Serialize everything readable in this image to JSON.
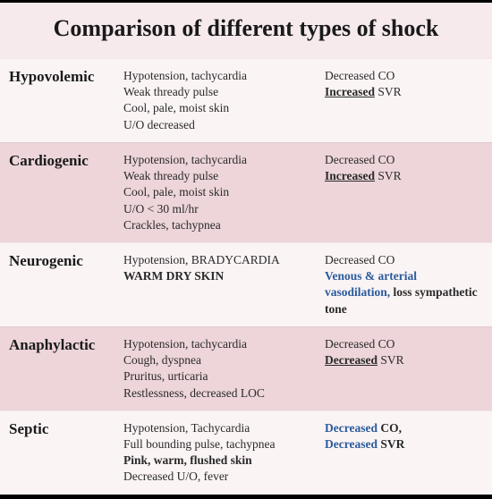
{
  "title": "Comparison of different types of shock",
  "colors": {
    "background": "#f6eaed",
    "row_light": "#fbf4f5",
    "row_dark": "#edd5da",
    "text": "#1a1a1a",
    "accent_blue": "#2a5b9c",
    "border": "#000000"
  },
  "typography": {
    "title_fontsize": 26,
    "type_name_fontsize": 17,
    "body_fontsize": 13.5,
    "font_family": "Georgia, serif"
  },
  "rows": [
    {
      "name": "Hypovolemic",
      "shade": "light",
      "features": [
        [
          {
            "t": "Hypotension, tachycardia"
          }
        ],
        [
          {
            "t": "Weak thready pulse"
          }
        ],
        [
          {
            "t": "Cool, pale, moist skin"
          }
        ],
        [
          {
            "t": "U/O decreased"
          }
        ]
      ],
      "hemo": [
        [
          {
            "t": "Decreased CO"
          }
        ],
        [
          {
            "t": "Increased",
            "b": true,
            "u": true
          },
          {
            "t": " SVR"
          }
        ]
      ]
    },
    {
      "name": "Cardiogenic",
      "shade": "dark",
      "features": [
        [
          {
            "t": "Hypotension, tachycardia"
          }
        ],
        [
          {
            "t": "Weak thready pulse"
          }
        ],
        [
          {
            "t": "Cool, pale, moist skin"
          }
        ],
        [
          {
            "t": "U/O < 30 ml/hr"
          }
        ],
        [
          {
            "t": "Crackles, tachypnea"
          }
        ]
      ],
      "hemo": [
        [
          {
            "t": "Decreased CO"
          }
        ],
        [
          {
            "t": "Increased",
            "b": true,
            "u": true
          },
          {
            "t": " SVR"
          }
        ]
      ]
    },
    {
      "name": "Neurogenic",
      "shade": "light",
      "features": [
        [
          {
            "t": "Hypotension, BRADYCARDIA"
          }
        ],
        [
          {
            "t": "WARM DRY SKIN",
            "b": true
          }
        ]
      ],
      "hemo": [
        [
          {
            "t": "Decreased CO"
          }
        ],
        [
          {
            "t": "Venous & arterial vasodilation, ",
            "blue": true
          },
          {
            "t": "loss sympathetic tone",
            "b": true
          }
        ]
      ]
    },
    {
      "name": "Anaphylactic",
      "shade": "dark",
      "features": [
        [
          {
            "t": "Hypotension, tachycardia"
          }
        ],
        [
          {
            "t": "Cough, dyspnea"
          }
        ],
        [
          {
            "t": "Pruritus, urticaria"
          }
        ],
        [
          {
            "t": "Restlessness, decreased LOC"
          }
        ]
      ],
      "hemo": [
        [
          {
            "t": "Decreased CO"
          }
        ],
        [
          {
            "t": "Decreased",
            "b": true,
            "u": true
          },
          {
            "t": " SVR"
          }
        ]
      ]
    },
    {
      "name": "Septic",
      "shade": "light",
      "features": [
        [
          {
            "t": "Hypotension, Tachycardia"
          }
        ],
        [
          {
            "t": "Full bounding pulse, tachypnea"
          }
        ],
        [
          {
            "t": "Pink, warm, flushed skin",
            "b": true
          }
        ],
        [
          {
            "t": "Decreased U/O, fever"
          }
        ]
      ],
      "hemo": [
        [
          {
            "t": "Decreased",
            "blue": true
          },
          {
            "t": " CO,",
            "b": true
          }
        ],
        [
          {
            "t": "Decreased",
            "blue": true
          },
          {
            "t": " SVR",
            "b": true
          }
        ]
      ]
    }
  ]
}
